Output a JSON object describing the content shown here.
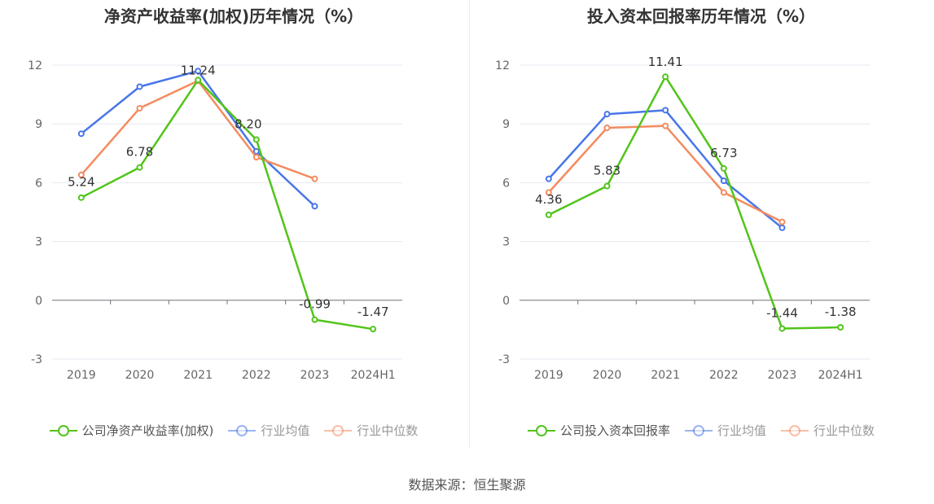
{
  "charts": [
    {
      "id": "roe",
      "title": "净资产收益率(加权)历年情况（%）",
      "legend": [
        {
          "label": "公司净资产收益率(加权)",
          "color": "#52c41a",
          "state": "on"
        },
        {
          "label": "行业均值",
          "color": "#4876e8",
          "state": "off"
        },
        {
          "label": "行业中位数",
          "color": "#f48b5e",
          "state": "off"
        }
      ]
    },
    {
      "id": "roic",
      "title": "投入资本回报率历年情况（%）",
      "legend": [
        {
          "label": "公司投入资本回报率",
          "color": "#52c41a",
          "state": "on"
        },
        {
          "label": "行业均值",
          "color": "#4876e8",
          "state": "off"
        },
        {
          "label": "行业中位数",
          "color": "#f48b5e",
          "state": "off"
        }
      ]
    }
  ],
  "chart_data": [
    {
      "type": "line",
      "title": "净资产收益率(加权)历年情况（%）",
      "categories": [
        "2019",
        "2020",
        "2021",
        "2022",
        "2023",
        "2024H1"
      ],
      "y_ticks": [
        "12",
        "9",
        "6",
        "3",
        "0",
        "-3"
      ],
      "ylim": [
        -3,
        12
      ],
      "grid": true,
      "legend_position": "bottom",
      "series": [
        {
          "name": "公司净资产收益率(加权)",
          "color": "#52c41a",
          "values": [
            5.24,
            6.78,
            11.24,
            8.2,
            -0.99,
            -1.47
          ],
          "labels": [
            "5.24",
            "6.78",
            "11.24",
            "8.20",
            "-0.99",
            "-1.47"
          ]
        },
        {
          "name": "行业均值",
          "color": "#4876e8",
          "values": [
            8.5,
            10.9,
            11.7,
            7.6,
            4.8,
            null
          ]
        },
        {
          "name": "行业中位数",
          "color": "#f48b5e",
          "values": [
            6.4,
            9.8,
            11.2,
            7.3,
            6.2,
            null
          ]
        }
      ]
    },
    {
      "type": "line",
      "title": "投入资本回报率历年情况（%）",
      "categories": [
        "2019",
        "2020",
        "2021",
        "2022",
        "2023",
        "2024H1"
      ],
      "y_ticks": [
        "12",
        "9",
        "6",
        "3",
        "0",
        "-3"
      ],
      "ylim": [
        -3,
        12
      ],
      "grid": true,
      "legend_position": "bottom",
      "series": [
        {
          "name": "公司投入资本回报率",
          "color": "#52c41a",
          "values": [
            4.36,
            5.83,
            11.41,
            6.73,
            -1.44,
            -1.38
          ],
          "labels": [
            "4.36",
            "5.83",
            "11.41",
            "6.73",
            "-1.44",
            "-1.38"
          ]
        },
        {
          "name": "行业均值",
          "color": "#4876e8",
          "values": [
            6.2,
            9.5,
            9.7,
            6.1,
            3.7,
            null
          ]
        },
        {
          "name": "行业中位数",
          "color": "#f48b5e",
          "values": [
            5.5,
            8.8,
            8.9,
            5.5,
            4.0,
            null
          ]
        }
      ]
    }
  ],
  "source": "数据来源：恒生聚源"
}
